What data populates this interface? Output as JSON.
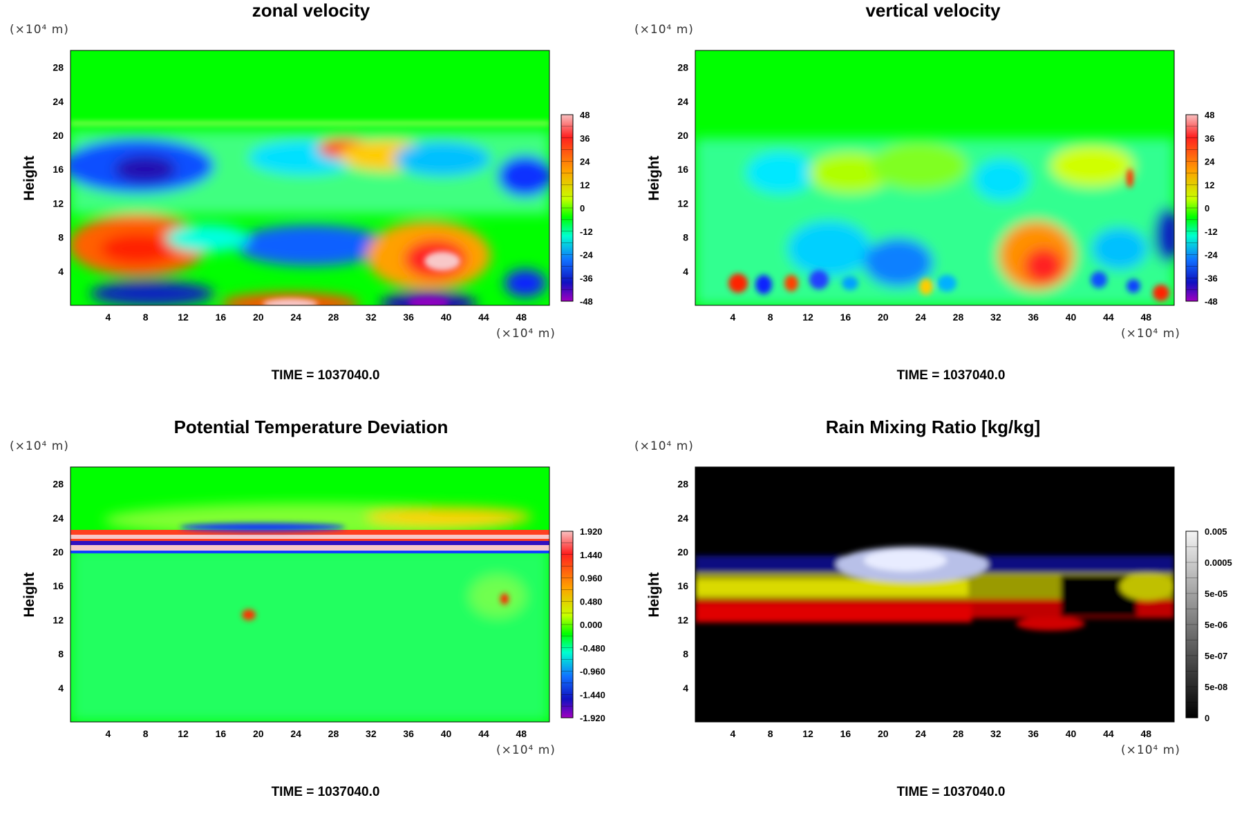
{
  "page": {
    "x_unit": "(×10⁴ m)",
    "y_unit": "(×10⁴ m)"
  },
  "chart_data": [
    {
      "type": "heatmap",
      "title": "zonal velocity",
      "ylabel": "Height",
      "xlabel": "",
      "x_unit": "(×10⁴ m)",
      "y_unit": "(×10⁴ m)",
      "x_ticks": [
        "4",
        "8",
        "12",
        "16",
        "20",
        "24",
        "28",
        "32",
        "36",
        "40",
        "44",
        "48"
      ],
      "y_ticks": [
        "4",
        "8",
        "12",
        "16",
        "20",
        "24",
        "28"
      ],
      "xlim": [
        0,
        51
      ],
      "ylim": [
        0,
        30
      ],
      "colorbar_labels": [
        "48",
        "36",
        "24",
        "12",
        "0",
        "-12",
        "-24",
        "-36",
        "-48"
      ],
      "colormap": "rainbow",
      "footer": "TIME = 1037040.0"
    },
    {
      "type": "heatmap",
      "title": "vertical velocity",
      "ylabel": "Height",
      "xlabel": "",
      "x_unit": "(×10⁴ m)",
      "y_unit": "(×10⁴ m)",
      "x_ticks": [
        "4",
        "8",
        "12",
        "16",
        "20",
        "24",
        "28",
        "32",
        "36",
        "40",
        "44",
        "48"
      ],
      "y_ticks": [
        "4",
        "8",
        "12",
        "16",
        "20",
        "24",
        "28"
      ],
      "xlim": [
        0,
        51
      ],
      "ylim": [
        0,
        30
      ],
      "colorbar_labels": [
        "48",
        "36",
        "24",
        "12",
        "0",
        "-12",
        "-24",
        "-36",
        "-48"
      ],
      "colormap": "rainbow",
      "footer": "TIME = 1037040.0"
    },
    {
      "type": "heatmap",
      "title": "Potential Temperature Deviation",
      "ylabel": "Height",
      "xlabel": "",
      "x_unit": "(×10⁴ m)",
      "y_unit": "(×10⁴ m)",
      "x_ticks": [
        "4",
        "8",
        "12",
        "16",
        "20",
        "24",
        "28",
        "32",
        "36",
        "40",
        "44",
        "48"
      ],
      "y_ticks": [
        "4",
        "8",
        "12",
        "16",
        "20",
        "24",
        "28"
      ],
      "xlim": [
        0,
        51
      ],
      "ylim": [
        0,
        30
      ],
      "colorbar_labels": [
        "1.920",
        "1.440",
        "0.960",
        "0.480",
        "0.000",
        "-0.480",
        "-0.960",
        "-1.440",
        "-1.920"
      ],
      "colormap": "rainbow",
      "footer": "TIME = 1037040.0"
    },
    {
      "type": "heatmap",
      "title": "Rain Mixing Ratio [kg/kg]",
      "ylabel": "Height",
      "xlabel": "",
      "x_unit": "(×10⁴ m)",
      "y_unit": "(×10⁴ m)",
      "x_ticks": [
        "4",
        "8",
        "12",
        "16",
        "20",
        "24",
        "28",
        "32",
        "36",
        "40",
        "44",
        "48"
      ],
      "y_ticks": [
        "4",
        "8",
        "12",
        "16",
        "20",
        "24",
        "28"
      ],
      "xlim": [
        0,
        51
      ],
      "ylim": [
        0,
        30
      ],
      "colorbar_labels": [
        "0.005",
        "0.0005",
        "5e-05",
        "5e-06",
        "5e-07",
        "5e-08",
        "0"
      ],
      "colormap": "grayscale",
      "footer": "TIME = 1037040.0"
    }
  ]
}
